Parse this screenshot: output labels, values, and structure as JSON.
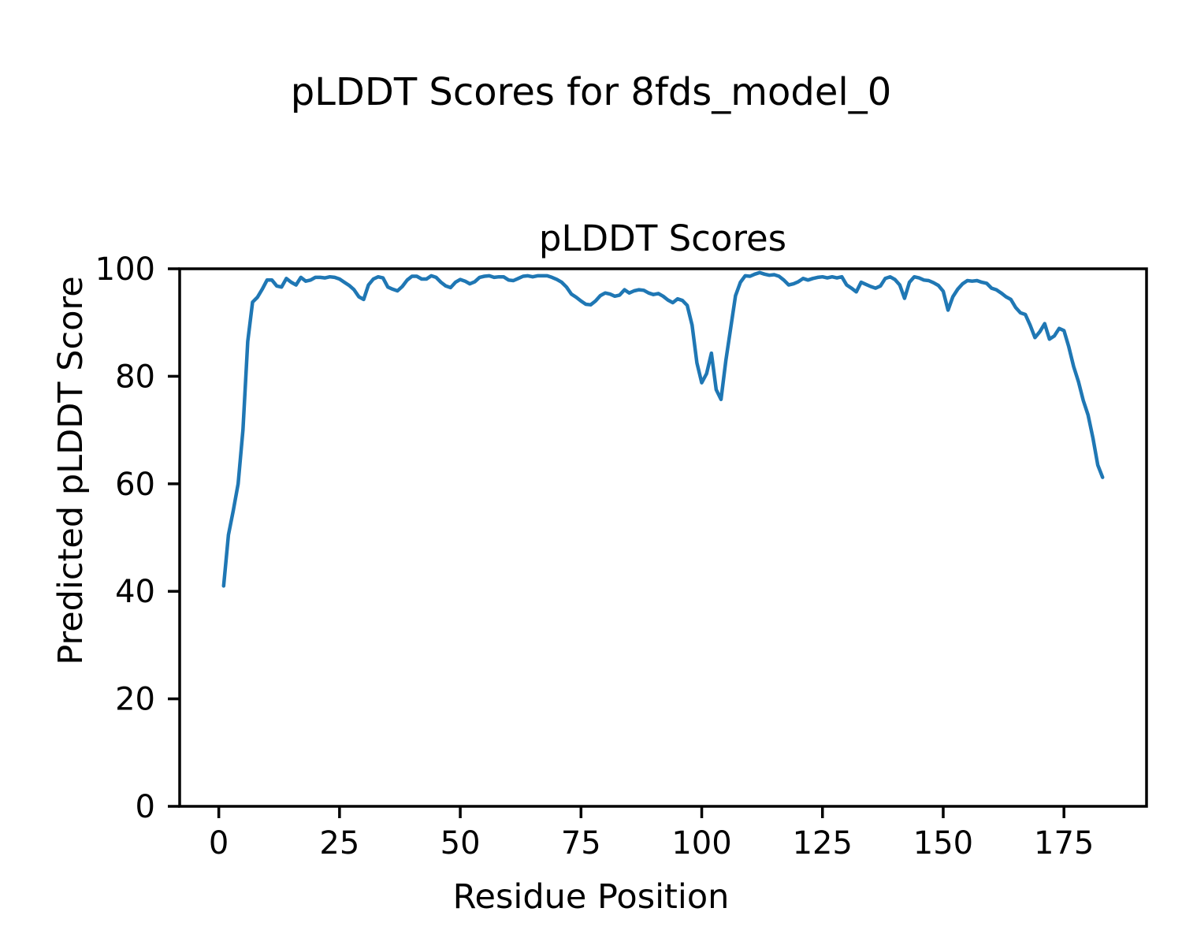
{
  "figure": {
    "suptitle": "pLDDT Scores for 8fds_model_0",
    "background": "#ffffff"
  },
  "chart_data": {
    "type": "line",
    "title": "pLDDT Scores",
    "suptitle": "pLDDT Scores for 8fds_model_0",
    "xlabel": "Residue Position",
    "ylabel": "Predicted pLDDT Score",
    "grid": false,
    "legend": "none",
    "text_color": "#000000",
    "background": "#ffffff",
    "spine_color": "#000000",
    "xlim": [
      -8.1,
      192.1
    ],
    "ylim": [
      0,
      100
    ],
    "xticks": [
      0,
      25,
      50,
      75,
      100,
      125,
      150,
      175
    ],
    "yticks": [
      0,
      20,
      40,
      60,
      80,
      100
    ],
    "series": [
      {
        "name": "pLDDT",
        "color": "#1f77b4",
        "line_width": 4.5,
        "x": [
          1,
          2,
          3,
          4,
          5,
          6,
          7,
          8,
          9,
          10,
          11,
          12,
          13,
          14,
          15,
          16,
          17,
          18,
          19,
          20,
          21,
          22,
          23,
          24,
          25,
          26,
          27,
          28,
          29,
          30,
          31,
          32,
          33,
          34,
          35,
          36,
          37,
          38,
          39,
          40,
          41,
          42,
          43,
          44,
          45,
          46,
          47,
          48,
          49,
          50,
          51,
          52,
          53,
          54,
          55,
          56,
          57,
          58,
          59,
          60,
          61,
          62,
          63,
          64,
          65,
          66,
          67,
          68,
          69,
          70,
          71,
          72,
          73,
          74,
          75,
          76,
          77,
          78,
          79,
          80,
          81,
          82,
          83,
          84,
          85,
          86,
          87,
          88,
          89,
          90,
          91,
          92,
          93,
          94,
          95,
          96,
          97,
          98,
          99,
          100,
          101,
          102,
          103,
          104,
          105,
          106,
          107,
          108,
          109,
          110,
          111,
          112,
          113,
          114,
          115,
          116,
          117,
          118,
          119,
          120,
          121,
          122,
          123,
          124,
          125,
          126,
          127,
          128,
          129,
          130,
          131,
          132,
          133,
          134,
          135,
          136,
          137,
          138,
          139,
          140,
          141,
          142,
          143,
          144,
          145,
          146,
          147,
          148,
          149,
          150,
          151,
          152,
          153,
          154,
          155,
          156,
          157,
          158,
          159,
          160,
          161,
          162,
          163,
          164,
          165,
          166,
          167,
          168,
          169,
          170,
          171,
          172,
          173,
          174,
          175,
          176,
          177,
          178,
          179,
          180,
          181,
          182,
          183
        ],
        "y": [
          41.0,
          50.5,
          55.0,
          60.0,
          70.0,
          86.5,
          93.8,
          94.7,
          96.2,
          97.9,
          97.9,
          96.8,
          96.6,
          98.2,
          97.5,
          97.0,
          98.4,
          97.7,
          97.9,
          98.4,
          98.4,
          98.3,
          98.5,
          98.4,
          98.1,
          97.5,
          96.9,
          96.1,
          94.8,
          94.3,
          97.0,
          98.1,
          98.5,
          98.3,
          96.6,
          96.2,
          95.9,
          96.7,
          97.9,
          98.6,
          98.6,
          98.1,
          98.1,
          98.7,
          98.4,
          97.5,
          96.8,
          96.5,
          97.5,
          98.0,
          97.7,
          97.2,
          97.6,
          98.4,
          98.6,
          98.7,
          98.4,
          98.5,
          98.5,
          97.9,
          97.8,
          98.2,
          98.6,
          98.7,
          98.5,
          98.7,
          98.7,
          98.7,
          98.4,
          98.0,
          97.5,
          96.6,
          95.3,
          94.7,
          94.0,
          93.4,
          93.3,
          94.0,
          95.0,
          95.5,
          95.3,
          94.9,
          95.1,
          96.1,
          95.5,
          95.9,
          96.1,
          96.0,
          95.5,
          95.2,
          95.4,
          94.9,
          94.2,
          93.7,
          94.4,
          94.1,
          93.2,
          89.5,
          82.5,
          78.8,
          80.5,
          84.3,
          77.5,
          75.7,
          83.0,
          89.0,
          95.0,
          97.5,
          98.7,
          98.6,
          99.0,
          99.3,
          99.0,
          98.8,
          98.9,
          98.6,
          97.9,
          97.0,
          97.2,
          97.6,
          98.2,
          97.9,
          98.2,
          98.4,
          98.5,
          98.3,
          98.5,
          98.3,
          98.5,
          97.0,
          96.4,
          95.7,
          97.5,
          97.1,
          96.7,
          96.4,
          96.8,
          98.2,
          98.5,
          98.0,
          97.0,
          94.5,
          97.5,
          98.5,
          98.3,
          97.9,
          97.8,
          97.4,
          96.9,
          95.8,
          92.3,
          94.8,
          96.2,
          97.2,
          97.8,
          97.7,
          97.8,
          97.5,
          97.3,
          96.4,
          96.1,
          95.5,
          94.8,
          94.3,
          92.8,
          91.8,
          91.5,
          89.5,
          87.2,
          88.3,
          89.8,
          86.9,
          87.5,
          88.9,
          88.5,
          85.5,
          81.8,
          79.0,
          75.5,
          72.8,
          68.5,
          63.5,
          61.2
        ]
      }
    ]
  }
}
